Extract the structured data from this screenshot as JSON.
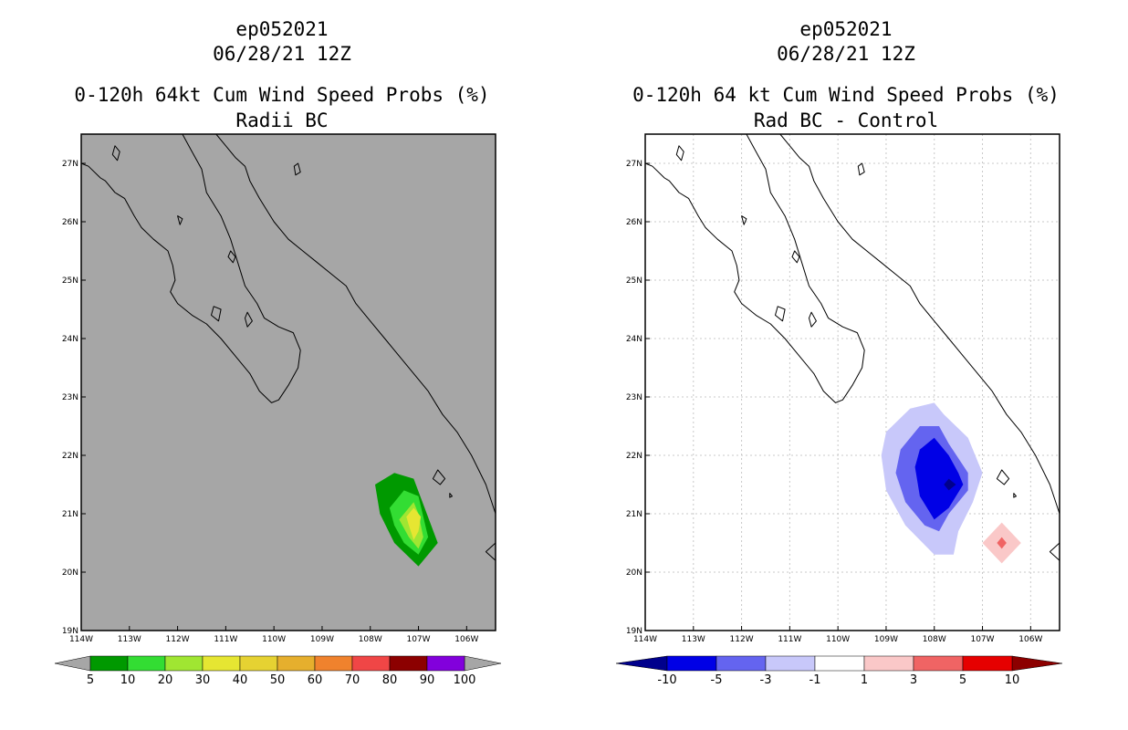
{
  "panels": [
    {
      "storm": "ep052021",
      "datetime": "06/28/21 12Z",
      "title": "0-120h 64kt Cum Wind Speed Probs (%)",
      "subtitle": "Radii BC",
      "background": "#a6a6a6",
      "gridlines": false
    },
    {
      "storm": "ep052021",
      "datetime": "06/28/21 12Z",
      "title": "0-120h 64 kt Cum Wind Speed Probs (%)",
      "subtitle": "Rad BC - Control",
      "background": "#ffffff",
      "gridlines": true
    }
  ],
  "chart_data": [
    {
      "type": "heatmap",
      "title": "0-120h 64kt Cum Wind Speed Probs (%)",
      "subtitle": "Radii BC",
      "x_ticks": [
        "114W",
        "113W",
        "112W",
        "111W",
        "110W",
        "109W",
        "108W",
        "107W",
        "106W"
      ],
      "y_ticks": [
        "19N",
        "20N",
        "21N",
        "22N",
        "23N",
        "24N",
        "25N",
        "26N",
        "27N"
      ],
      "xlim": [
        -114,
        -105.4
      ],
      "ylim": [
        19,
        27.5
      ],
      "colorbar": {
        "labels": [
          "5",
          "10",
          "20",
          "30",
          "40",
          "50",
          "60",
          "70",
          "80",
          "90",
          "100"
        ],
        "colors": [
          "#009900",
          "#33dd33",
          "#a0e632",
          "#e6e632",
          "#e6d232",
          "#e6af2d",
          "#f0822d",
          "#f04646",
          "#8c0000",
          "#8200dc"
        ],
        "arrow_color": "#a6a6a6"
      },
      "contours": [
        {
          "level": 5,
          "color": "#009900",
          "points": [
            [
              -107.5,
              21.7
            ],
            [
              -107.1,
              21.6
            ],
            [
              -106.6,
              20.5
            ],
            [
              -107.0,
              20.1
            ],
            [
              -107.5,
              20.5
            ],
            [
              -107.8,
              21.0
            ],
            [
              -107.9,
              21.5
            ]
          ]
        },
        {
          "level": 10,
          "color": "#33dd33",
          "points": [
            [
              -107.3,
              21.4
            ],
            [
              -107.0,
              21.3
            ],
            [
              -106.8,
              20.6
            ],
            [
              -107.0,
              20.3
            ],
            [
              -107.3,
              20.5
            ],
            [
              -107.5,
              20.8
            ],
            [
              -107.6,
              21.1
            ]
          ]
        },
        {
          "level": 20,
          "color": "#a0e632",
          "points": [
            [
              -107.1,
              21.2
            ],
            [
              -107.0,
              21.0
            ],
            [
              -106.9,
              20.6
            ],
            [
              -107.0,
              20.4
            ],
            [
              -107.2,
              20.6
            ],
            [
              -107.4,
              20.9
            ]
          ]
        },
        {
          "level": 30,
          "color": "#e6e632",
          "points": [
            [
              -107.1,
              21.1
            ],
            [
              -106.95,
              20.95
            ],
            [
              -107.0,
              20.7
            ],
            [
              -107.1,
              20.55
            ],
            [
              -107.2,
              20.8
            ],
            [
              -107.25,
              20.95
            ]
          ]
        }
      ]
    },
    {
      "type": "heatmap",
      "title": "0-120h 64 kt Cum Wind Speed Probs (%)",
      "subtitle": "Rad BC - Control",
      "x_ticks": [
        "114W",
        "113W",
        "112W",
        "111W",
        "110W",
        "109W",
        "108W",
        "107W",
        "106W"
      ],
      "y_ticks": [
        "19N",
        "20N",
        "21N",
        "22N",
        "23N",
        "24N",
        "25N",
        "26N",
        "27N"
      ],
      "xlim": [
        -114,
        -105.4
      ],
      "ylim": [
        19,
        27.5
      ],
      "colorbar": {
        "labels": [
          "-10",
          "-5",
          "-3",
          "-1",
          "1",
          "3",
          "5",
          "10"
        ],
        "colors": [
          "#0000e6",
          "#6464f0",
          "#c8c8fa",
          "#ffffff",
          "#fac8c8",
          "#f06464",
          "#e60000"
        ],
        "arrow_left_color": "#00008c",
        "arrow_right_color": "#8c0000"
      },
      "contours": [
        {
          "level": -1,
          "color": "#c8c8fa",
          "points": [
            [
              -108.5,
              22.8
            ],
            [
              -108.0,
              22.9
            ],
            [
              -107.8,
              22.7
            ],
            [
              -107.3,
              22.3
            ],
            [
              -107.0,
              21.7
            ],
            [
              -107.2,
              21.2
            ],
            [
              -107.5,
              20.7
            ],
            [
              -107.6,
              20.3
            ],
            [
              -108.0,
              20.3
            ],
            [
              -108.6,
              20.8
            ],
            [
              -109.0,
              21.4
            ],
            [
              -109.1,
              22.0
            ],
            [
              -109.0,
              22.4
            ]
          ]
        },
        {
          "level": -3,
          "color": "#6464f0",
          "points": [
            [
              -108.3,
              22.5
            ],
            [
              -107.9,
              22.5
            ],
            [
              -107.7,
              22.2
            ],
            [
              -107.3,
              21.7
            ],
            [
              -107.3,
              21.4
            ],
            [
              -107.7,
              21.0
            ],
            [
              -107.9,
              20.7
            ],
            [
              -108.2,
              20.8
            ],
            [
              -108.6,
              21.2
            ],
            [
              -108.8,
              21.7
            ],
            [
              -108.7,
              22.1
            ]
          ]
        },
        {
          "level": -5,
          "color": "#0000e6",
          "points": [
            [
              -108.0,
              22.3
            ],
            [
              -107.7,
              22.0
            ],
            [
              -107.5,
              21.7
            ],
            [
              -107.4,
              21.5
            ],
            [
              -107.7,
              21.1
            ],
            [
              -108.0,
              20.9
            ],
            [
              -108.3,
              21.3
            ],
            [
              -108.4,
              21.8
            ],
            [
              -108.3,
              22.1
            ]
          ]
        },
        {
          "level": -10,
          "color": "#00008c",
          "points": [
            [
              -107.7,
              21.6
            ],
            [
              -107.55,
              21.5
            ],
            [
              -107.7,
              21.4
            ],
            [
              -107.8,
              21.5
            ]
          ]
        },
        {
          "level": 1,
          "color": "#fac8c8",
          "points": [
            [
              -106.6,
              20.85
            ],
            [
              -106.2,
              20.5
            ],
            [
              -106.6,
              20.15
            ],
            [
              -107.0,
              20.5
            ]
          ]
        },
        {
          "level": 3,
          "color": "#f06464",
          "points": [
            [
              -106.6,
              20.6
            ],
            [
              -106.5,
              20.5
            ],
            [
              -106.6,
              20.4
            ],
            [
              -106.7,
              20.5
            ]
          ]
        }
      ]
    }
  ]
}
